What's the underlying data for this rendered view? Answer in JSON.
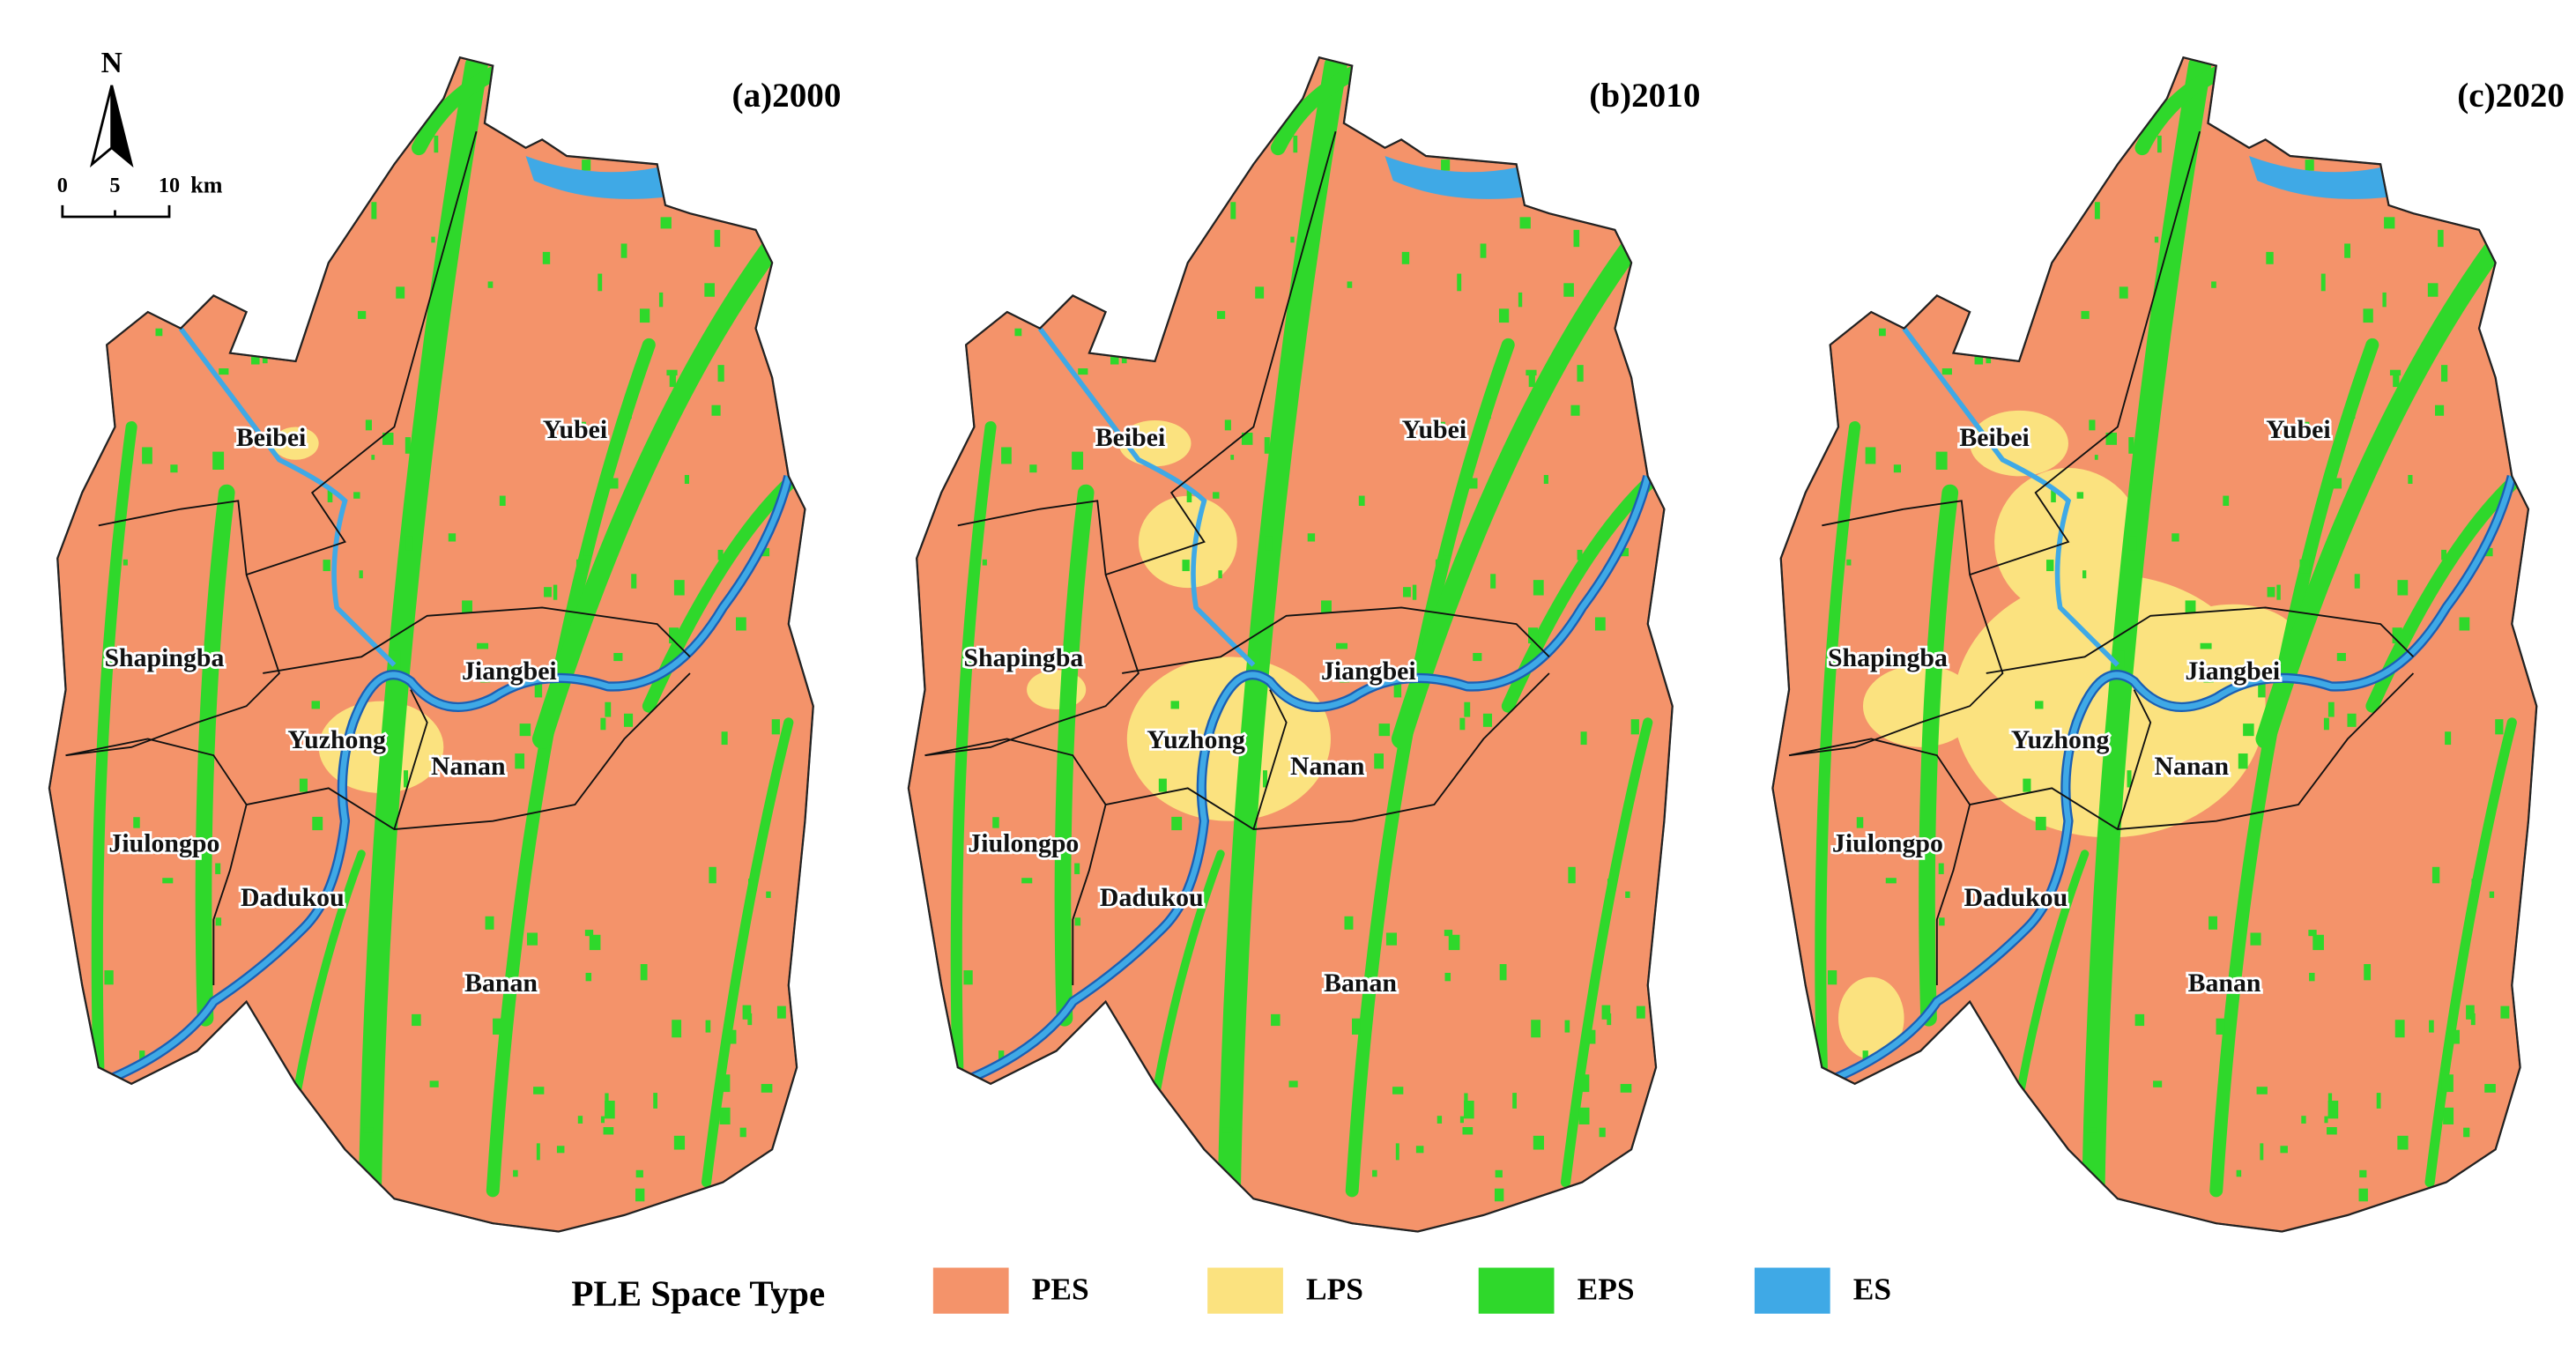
{
  "panels": [
    {
      "title": "(a)2000"
    },
    {
      "title": "(b)2010"
    },
    {
      "title": "(c)2020"
    }
  ],
  "district_labels": [
    "Beibei",
    "Yubei",
    "Shapingba",
    "Jiangbei",
    "Yuzhong",
    "Nanan",
    "Jiulongpo",
    "Dadukou",
    "Banan"
  ],
  "north_arrow": {
    "label": "N"
  },
  "scale_bar": {
    "ticks": [
      "0",
      "5",
      "10"
    ],
    "unit": "km"
  },
  "legend": {
    "title": "PLE Space Type",
    "items": [
      {
        "label": "PES",
        "color": "#f4936a"
      },
      {
        "label": "LPS",
        "color": "#fbe27f"
      },
      {
        "label": "EPS",
        "color": "#2fd82b"
      },
      {
        "label": "ES",
        "color": "#3fa9e6"
      }
    ]
  }
}
